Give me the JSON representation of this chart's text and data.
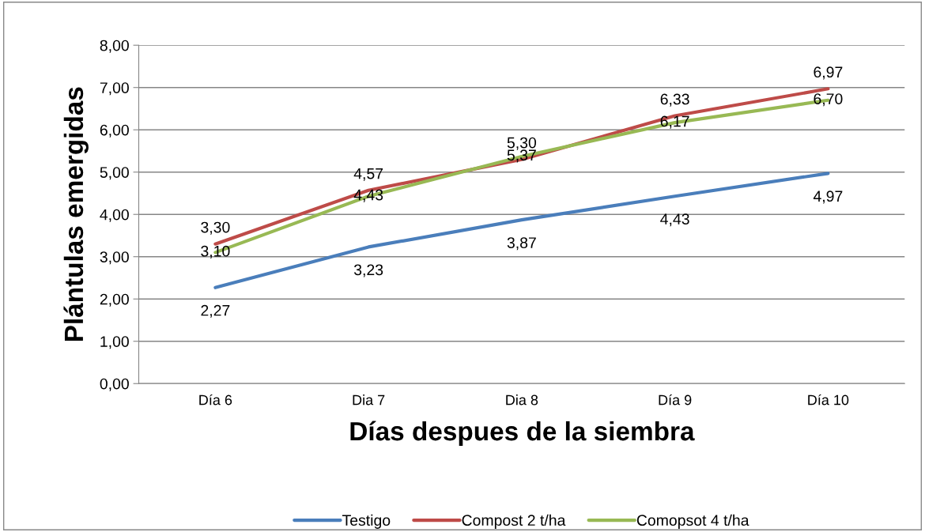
{
  "chart_data": {
    "type": "line",
    "xlabel": "Días despues de la siembra",
    "ylabel": "Plántulas emergidas",
    "categories": [
      "Día 6",
      "Dia 7",
      "Dia 8",
      "Día 9",
      "Día 10"
    ],
    "series": [
      {
        "name": "Testigo",
        "color": "#4a7ebb",
        "values": [
          2.27,
          3.23,
          3.87,
          4.43,
          4.97
        ],
        "value_labels": [
          "2,27",
          "3,23",
          "3,87",
          "4,43",
          "4,97"
        ]
      },
      {
        "name": "Compost 2 t/ha",
        "color": "#be4b48",
        "values": [
          3.3,
          4.57,
          5.3,
          6.33,
          6.97
        ],
        "value_labels": [
          "3,30",
          "4,57",
          "5,30",
          "6,33",
          "6,97"
        ]
      },
      {
        "name": "Comopsot 4 t/ha",
        "color": "#98b954",
        "values": [
          3.1,
          4.43,
          5.37,
          6.17,
          6.7
        ],
        "value_labels": [
          "3,10",
          "4,43",
          "5,37",
          "6,17",
          "6,70"
        ]
      }
    ],
    "ylim": [
      0,
      8
    ],
    "yticks": [
      {
        "value": 0,
        "label": "0,00"
      },
      {
        "value": 1,
        "label": "1,00"
      },
      {
        "value": 2,
        "label": "2,00"
      },
      {
        "value": 3,
        "label": "3,00"
      },
      {
        "value": 4,
        "label": "4,00"
      },
      {
        "value": 5,
        "label": "5,00"
      },
      {
        "value": 6,
        "label": "6,00"
      },
      {
        "value": 7,
        "label": "7,00"
      },
      {
        "value": 8,
        "label": "8,00"
      }
    ],
    "grid": "y",
    "legend": "bottom",
    "marker": "none",
    "line_style": "solid"
  }
}
